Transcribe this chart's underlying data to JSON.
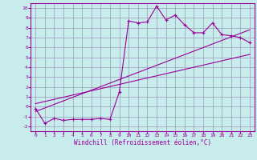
{
  "xlabel": "Windchill (Refroidissement éolien,°C)",
  "bg_color": "#c8ecec",
  "grid_color": "#9999bb",
  "line_color": "#990099",
  "xlim": [
    -0.5,
    23.5
  ],
  "ylim": [
    -2.5,
    10.5
  ],
  "xticks": [
    0,
    1,
    2,
    3,
    4,
    5,
    6,
    7,
    8,
    9,
    10,
    11,
    12,
    13,
    14,
    15,
    16,
    17,
    18,
    19,
    20,
    21,
    22,
    23
  ],
  "yticks": [
    -2,
    -1,
    0,
    1,
    2,
    3,
    4,
    5,
    6,
    7,
    8,
    9,
    10
  ],
  "scatter_x": [
    0,
    1,
    2,
    3,
    4,
    5,
    6,
    7,
    8,
    9,
    10,
    11,
    12,
    13,
    14,
    15,
    16,
    17,
    18,
    19,
    20,
    21,
    22,
    23
  ],
  "scatter_y": [
    -0.2,
    -1.7,
    -1.2,
    -1.4,
    -1.3,
    -1.3,
    -1.3,
    -1.2,
    -1.3,
    1.5,
    8.7,
    8.5,
    8.6,
    10.2,
    8.8,
    9.3,
    8.3,
    7.5,
    7.5,
    8.5,
    7.3,
    7.2,
    7.0,
    6.5
  ],
  "line1_x": [
    0,
    23
  ],
  "line1_y": [
    -0.2,
    6.5
  ],
  "line2_x": [
    0,
    23
  ],
  "line2_y": [
    -0.5,
    7.8
  ],
  "line3_x": [
    0,
    23
  ],
  "line3_y": [
    0.3,
    5.3
  ]
}
